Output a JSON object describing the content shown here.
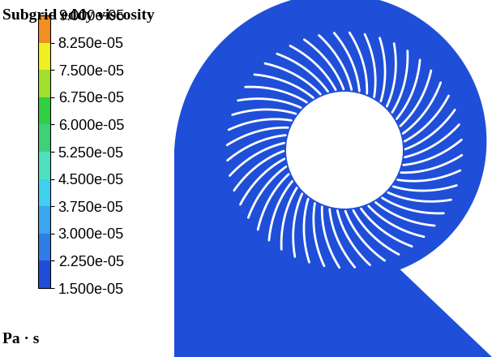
{
  "chart_data": {
    "type": "contour",
    "title": "Subgrid eddy viscosity",
    "colorbar_label": "Pa · s",
    "colorbar_range": [
      1.5e-05,
      9e-05
    ],
    "colorbar_ticks": [
      {
        "value": 1.5e-05,
        "label": "1.500e-05"
      },
      {
        "value": 2.25e-05,
        "label": "2.250e-05"
      },
      {
        "value": 3e-05,
        "label": "3.000e-05"
      },
      {
        "value": 3.75e-05,
        "label": "3.750e-05"
      },
      {
        "value": 4.5e-05,
        "label": "4.500e-05"
      },
      {
        "value": 5.25e-05,
        "label": "5.250e-05"
      },
      {
        "value": 6e-05,
        "label": "6.000e-05"
      },
      {
        "value": 6.75e-05,
        "label": "6.750e-05"
      },
      {
        "value": 7.5e-05,
        "label": "7.500e-05"
      },
      {
        "value": 8.25e-05,
        "label": "8.250e-05"
      },
      {
        "value": 9e-05,
        "label": "9.000e-05"
      }
    ]
  }
}
